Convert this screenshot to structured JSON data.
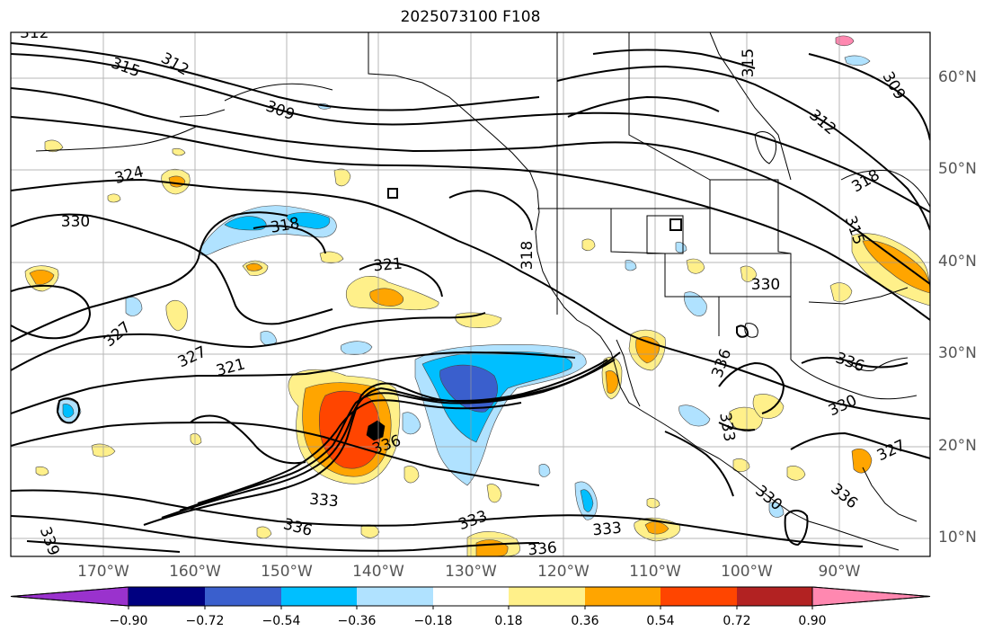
{
  "title": "2025073100 F108",
  "lon_labels": [
    "170°W",
    "160°W",
    "150°W",
    "140°W",
    "130°W",
    "120°W",
    "110°W",
    "100°W",
    "90°W"
  ],
  "lat_labels": [
    "60°N",
    "50°N",
    "40°N",
    "30°N",
    "20°N",
    "10°N"
  ],
  "colorbar": {
    "colors": [
      "#9a32cd",
      "#000080",
      "#3a5fcd",
      "#00bfff",
      "#b0e2ff",
      "#ffffff",
      "#fff08a",
      "#ffa500",
      "#ff4500",
      "#b22222",
      "#ff88b0"
    ],
    "ticks": [
      "−0.90",
      "−0.72",
      "−0.54",
      "−0.36",
      "−0.18",
      "0.18",
      "0.36",
      "0.54",
      "0.72",
      "0.90"
    ]
  },
  "contour_labels": [
    "312",
    "315",
    "312",
    "309",
    "315",
    "309",
    "312",
    "318",
    "315",
    "324",
    "330",
    "318",
    "321",
    "318",
    "330",
    "327",
    "327",
    "321",
    "336",
    "336",
    "330",
    "327",
    "333",
    "336",
    "333",
    "336",
    "333",
    "333",
    "336",
    "330",
    "336",
    "339"
  ]
}
